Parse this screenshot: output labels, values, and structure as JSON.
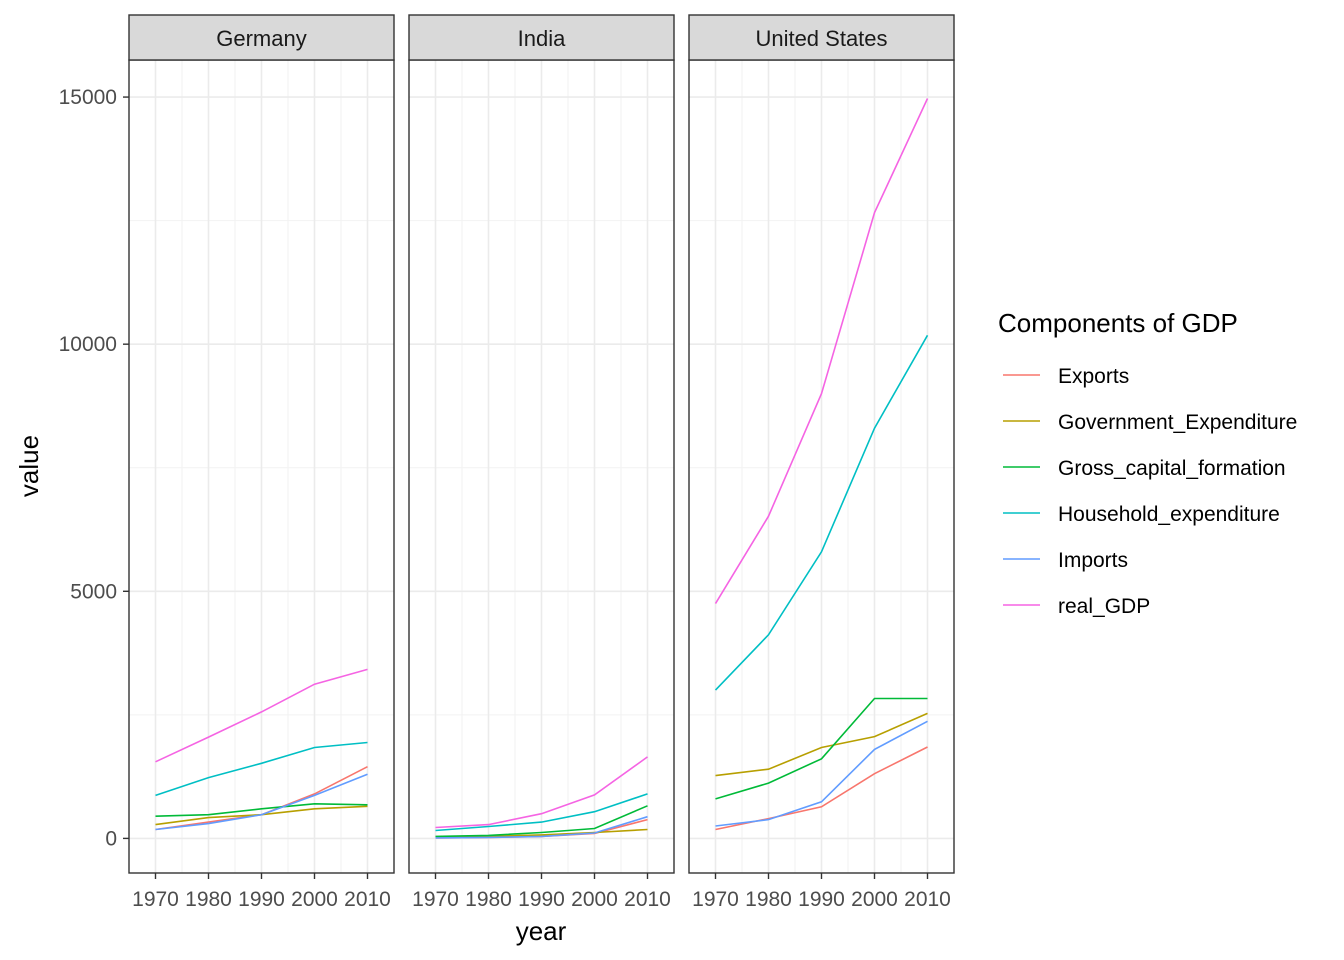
{
  "chart_data": {
    "type": "line",
    "xlabel": "year",
    "ylabel": "value",
    "x": [
      1970,
      1980,
      1990,
      2000,
      2010
    ],
    "y_ticks": [
      0,
      5000,
      10000,
      15000
    ],
    "ylim": [
      -700,
      15750
    ],
    "xlim": [
      1965,
      2015
    ],
    "grid": true,
    "legend": {
      "title": "Components of GDP",
      "placement": "right"
    },
    "series_colors": {
      "Exports": "#F8766D",
      "Government_Expenditure": "#B79F00",
      "Gross_capital_formation": "#00BA38",
      "Household_expenditure": "#00BFC4",
      "Imports": "#619CFF",
      "real_GDP": "#F564E3"
    },
    "series_names": [
      "Exports",
      "Government_Expenditure",
      "Gross_capital_formation",
      "Household_expenditure",
      "Imports",
      "real_GDP"
    ],
    "panels": [
      {
        "title": "Germany",
        "series": [
          {
            "name": "Exports",
            "values": [
              180,
              330,
              480,
              900,
              1450
            ]
          },
          {
            "name": "Government_Expenditure",
            "values": [
              280,
              420,
              480,
              600,
              650
            ]
          },
          {
            "name": "Gross_capital_formation",
            "values": [
              450,
              480,
              600,
              700,
              680
            ]
          },
          {
            "name": "Household_expenditure",
            "values": [
              870,
              1230,
              1520,
              1840,
              1940
            ]
          },
          {
            "name": "Imports",
            "values": [
              180,
              300,
              480,
              870,
              1300
            ]
          },
          {
            "name": "real_GDP",
            "values": [
              1550,
              2050,
              2560,
              3120,
              3420
            ]
          }
        ]
      },
      {
        "title": "India",
        "series": [
          {
            "name": "Exports",
            "values": [
              10,
              20,
              40,
              100,
              380
            ]
          },
          {
            "name": "Government_Expenditure",
            "values": [
              30,
              40,
              70,
              120,
              180
            ]
          },
          {
            "name": "Gross_capital_formation",
            "values": [
              40,
              60,
              120,
              200,
              660
            ]
          },
          {
            "name": "Household_expenditure",
            "values": [
              160,
              240,
              330,
              540,
              900
            ]
          },
          {
            "name": "Imports",
            "values": [
              10,
              20,
              40,
              110,
              440
            ]
          },
          {
            "name": "real_GDP",
            "values": [
              220,
              280,
              500,
              880,
              1650
            ]
          }
        ]
      },
      {
        "title": "United States",
        "series": [
          {
            "name": "Exports",
            "values": [
              180,
              400,
              640,
              1310,
              1850
            ]
          },
          {
            "name": "Government_Expenditure",
            "values": [
              1270,
              1400,
              1840,
              2060,
              2530
            ]
          },
          {
            "name": "Gross_capital_formation",
            "values": [
              800,
              1120,
              1610,
              2830,
              2830
            ]
          },
          {
            "name": "Household_expenditure",
            "values": [
              3000,
              4120,
              5800,
              8300,
              10180
            ]
          },
          {
            "name": "Imports",
            "values": [
              250,
              380,
              740,
              1800,
              2370
            ]
          },
          {
            "name": "real_GDP",
            "values": [
              4750,
              6520,
              9000,
              12660,
              14970
            ]
          }
        ]
      }
    ]
  }
}
